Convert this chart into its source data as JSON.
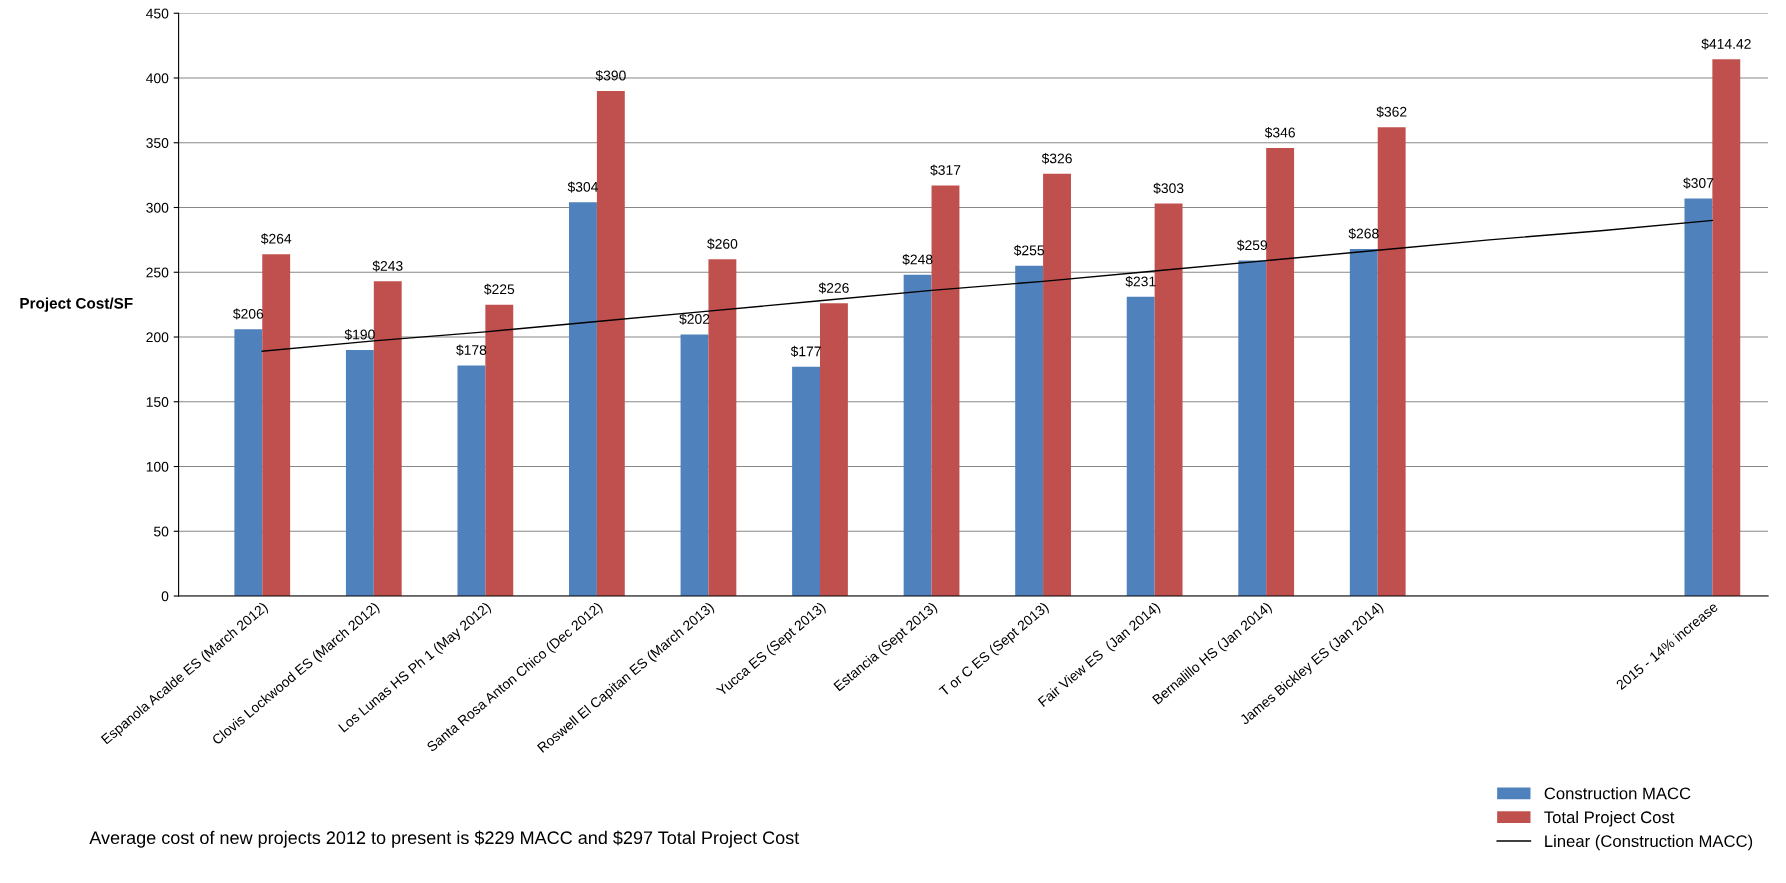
{
  "chart_data": {
    "type": "bar",
    "ylabel": "Project Cost/SF",
    "categories": [
      "Espanola Acalde ES (March 2012)",
      "Clovis Lockwood ES (March 2012)",
      "Los Lunas HS Ph 1 (May 2012)",
      "Santa Rosa Anton Chico (Dec 2012)",
      "Roswell El Capitan ES (March 2013)",
      "Yucca ES (Sept 2013)",
      "Estancia (Sept 2013)",
      "T or C ES (Sept 2013)",
      "Fair View ES  (Jan 2014)",
      "Bernalillo HS (Jan 2014)",
      "James Bickley ES (Jan 2014)",
      null,
      null,
      "2015 - 14% increase"
    ],
    "series": [
      {
        "name": "Construction MACC",
        "color": "#4f81bd",
        "values": [
          206,
          190,
          178,
          304,
          202,
          177,
          248,
          255,
          231,
          259,
          268,
          null,
          null,
          307
        ],
        "value_labels": [
          "$206",
          "$190",
          "$178",
          "$304",
          "$202",
          "$177",
          "$248",
          "$255",
          "$231",
          "$259",
          "$268",
          null,
          null,
          "$307"
        ]
      },
      {
        "name": "Total Project Cost",
        "color": "#c0504d",
        "values": [
          264,
          243,
          225,
          390,
          260,
          226,
          317,
          326,
          303,
          346,
          362,
          null,
          null,
          414.42
        ],
        "value_labels": [
          "$264",
          "$243",
          "$225",
          "$390",
          "$260",
          "$226",
          "$317",
          "$326",
          "$303",
          "$346",
          "$362",
          null,
          null,
          "$414.42"
        ]
      },
      {
        "name": "Linear (Construction MACC)",
        "type": "line",
        "color": "#000000",
        "values": [
          189,
          197,
          204,
          212,
          220,
          228,
          236,
          243,
          251,
          259,
          267,
          275,
          282,
          290
        ]
      }
    ],
    "ylim": [
      0,
      450
    ],
    "yticks": [
      0,
      50,
      100,
      150,
      200,
      250,
      300,
      350,
      400,
      450
    ],
    "grid": "y",
    "legend": "bottom right",
    "annotations": [
      "Average cost of new projects 2012 to present is $229 MACC and $297 Total Project Cost"
    ]
  }
}
